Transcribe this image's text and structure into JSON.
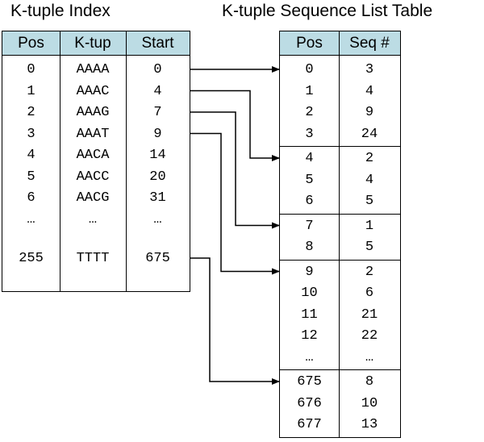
{
  "titles": {
    "left": "K-tuple Index",
    "right": "K-tuple Sequence List Table"
  },
  "kindex": {
    "headers": [
      "Pos",
      "K-tup",
      "Start"
    ],
    "rows": [
      [
        "0",
        "AAAA",
        "0"
      ],
      [
        "1",
        "AAAC",
        "4"
      ],
      [
        "2",
        "AAAG",
        "7"
      ],
      [
        "3",
        "AAAT",
        "9"
      ],
      [
        "4",
        "AACA",
        "14"
      ],
      [
        "5",
        "AACC",
        "20"
      ],
      [
        "6",
        "AACG",
        "31"
      ],
      [
        "…",
        "…",
        "…"
      ],
      [
        "255",
        "TTTT",
        "675"
      ]
    ]
  },
  "seqlist": {
    "headers": [
      "Pos",
      "Seq #"
    ],
    "groups": [
      [
        [
          "0",
          "3"
        ],
        [
          "1",
          "4"
        ],
        [
          "2",
          "9"
        ],
        [
          "3",
          "24"
        ]
      ],
      [
        [
          "4",
          "2"
        ],
        [
          "5",
          "4"
        ],
        [
          "6",
          "5"
        ]
      ],
      [
        [
          "7",
          "1"
        ],
        [
          "8",
          "5"
        ]
      ],
      [
        [
          "9",
          "2"
        ],
        [
          "10",
          "6"
        ],
        [
          "11",
          "21"
        ],
        [
          "12",
          "22"
        ],
        [
          "…",
          "…"
        ]
      ],
      [
        [
          "675",
          "8"
        ],
        [
          "676",
          "10"
        ],
        [
          "677",
          "13"
        ]
      ]
    ]
  },
  "links": [
    {
      "from_row": 0,
      "to_group": 0
    },
    {
      "from_row": 1,
      "to_group": 1
    },
    {
      "from_row": 2,
      "to_group": 2
    },
    {
      "from_row": 3,
      "to_group": 3
    },
    {
      "from_row": 8,
      "to_group": 4
    }
  ]
}
